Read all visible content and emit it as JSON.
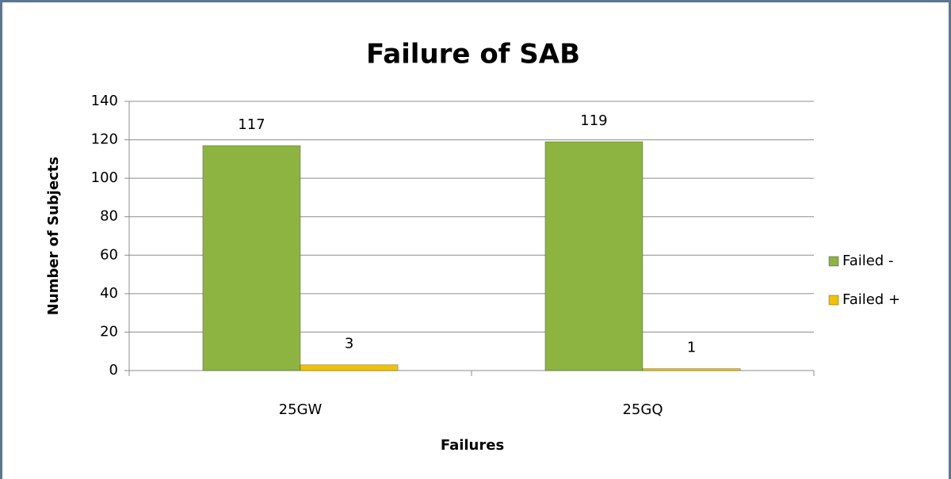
{
  "chart_data": {
    "type": "bar",
    "title": "Failure of SAB",
    "xlabel": "Failures",
    "ylabel": "Number of Subjects",
    "categories": [
      "25GW",
      "25GQ"
    ],
    "series": [
      {
        "name": "Failed -",
        "color": "#8db440",
        "values": [
          117,
          119
        ]
      },
      {
        "name": "Failed +",
        "color": "#f2c200",
        "values": [
          3,
          1
        ]
      }
    ],
    "ylim": [
      0,
      140
    ],
    "yticks": [
      0,
      20,
      40,
      60,
      80,
      100,
      120,
      140
    ],
    "grid": true,
    "legend": "right"
  }
}
